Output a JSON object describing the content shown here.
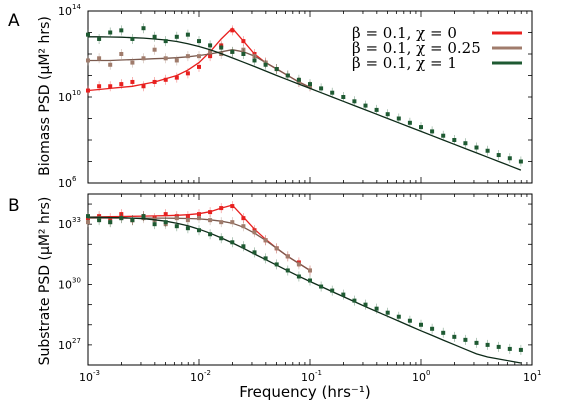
{
  "colors": {
    "chi0": "#e8201f",
    "chi025": "#a07c6c",
    "chi1": "#1e5a32",
    "fit_chi025": "#7a5a4e",
    "fit_chi1": "#0d2a18"
  },
  "figure": {
    "xlabel": "Frequency (hrs⁻¹)",
    "xlim": [
      0.001,
      10
    ],
    "x_ticks": [
      {
        "base": "10",
        "exp": "-3"
      },
      {
        "base": "10",
        "exp": "-2"
      },
      {
        "base": "10",
        "exp": "-1"
      },
      {
        "base": "10",
        "exp": "0"
      },
      {
        "base": "10",
        "exp": "1"
      }
    ],
    "legend": [
      {
        "text": "β = 0.1, χ = 0",
        "color": "#e8201f"
      },
      {
        "text": "β = 0.1, χ = 0.25",
        "color": "#a07c6c"
      },
      {
        "text": "β = 0.1, χ = 1",
        "color": "#1e5a32"
      }
    ]
  },
  "chart_data": [
    {
      "type": "scatter",
      "panel": "A",
      "ylabel": "Biomass PSD (μM² hrs)",
      "yscale": "log",
      "xscale": "log",
      "ylim_exp": [
        6,
        14
      ],
      "y_ticks": [
        {
          "base": "10",
          "exp": "6",
          "value_exp": 6
        },
        {
          "base": "10",
          "exp": "10",
          "value_exp": 10
        },
        {
          "base": "10",
          "exp": "14",
          "value_exp": 14
        }
      ],
      "series": [
        {
          "name": "β = 0.1, χ = 0",
          "x_log": [
            -3,
            -2.9,
            -2.8,
            -2.7,
            -2.6,
            -2.5,
            -2.4,
            -2.3,
            -2.2,
            -2.1,
            -2.0,
            -1.9,
            -1.8,
            -1.7,
            -1.6,
            -1.5,
            -1.4,
            -1.3,
            -1.2,
            -1.1,
            -1.0
          ],
          "y_log": [
            10.3,
            10.5,
            10.5,
            10.6,
            10.7,
            10.5,
            10.7,
            10.8,
            10.9,
            11.1,
            11.4,
            11.9,
            12.4,
            13.1,
            12.6,
            12.0,
            11.6,
            11.3,
            11.0,
            10.7,
            10.5
          ],
          "fit_log": [
            10.3,
            10.35,
            10.4,
            10.45,
            10.5,
            10.6,
            10.7,
            10.85,
            11.0,
            11.25,
            11.6,
            12.1,
            12.7,
            13.2,
            12.6,
            12.0,
            11.6,
            11.3,
            11.0,
            10.7,
            10.45
          ]
        },
        {
          "name": "β = 0.1, χ = 0.25",
          "x_log": [
            -3,
            -2.9,
            -2.8,
            -2.7,
            -2.6,
            -2.5,
            -2.4,
            -2.3,
            -2.2,
            -2.1,
            -2.0,
            -1.9,
            -1.8,
            -1.7,
            -1.6,
            -1.5,
            -1.4,
            -1.3,
            -1.2,
            -1.1,
            -1.0
          ],
          "y_log": [
            11.7,
            11.8,
            11.5,
            12.0,
            11.6,
            11.8,
            12.2,
            11.8,
            11.7,
            11.9,
            11.9,
            12.1,
            12.0,
            12.1,
            12.2,
            11.9,
            11.6,
            11.3,
            11.0,
            10.7,
            10.5
          ],
          "fit_log": [
            11.7,
            11.7,
            11.7,
            11.72,
            11.74,
            11.76,
            11.78,
            11.8,
            11.83,
            11.87,
            11.93,
            12.0,
            12.1,
            12.2,
            12.1,
            11.9,
            11.6,
            11.3,
            11.0,
            10.7,
            10.45
          ]
        },
        {
          "name": "β = 0.1, χ = 1",
          "x_log": [
            -3,
            -2.9,
            -2.8,
            -2.7,
            -2.6,
            -2.5,
            -2.4,
            -2.3,
            -2.2,
            -2.1,
            -2.0,
            -1.9,
            -1.8,
            -1.7,
            -1.6,
            -1.5,
            -1.4,
            -1.3,
            -1.2,
            -1.1,
            -1.0,
            -0.9,
            -0.8,
            -0.7,
            -0.6,
            -0.5,
            -0.4,
            -0.3,
            -0.2,
            -0.1,
            0.0,
            0.1,
            0.2,
            0.3,
            0.4,
            0.5,
            0.6,
            0.7,
            0.8,
            0.9
          ],
          "y_log": [
            12.9,
            12.7,
            13.0,
            13.1,
            12.7,
            13.2,
            12.8,
            12.6,
            12.8,
            12.9,
            12.6,
            12.4,
            12.3,
            12.1,
            12.0,
            11.7,
            11.5,
            11.3,
            11.0,
            10.8,
            10.6,
            10.4,
            10.2,
            10.0,
            9.8,
            9.6,
            9.4,
            9.2,
            9.0,
            8.8,
            8.6,
            8.4,
            8.2,
            8.0,
            7.85,
            7.65,
            7.5,
            7.3,
            7.15,
            7.0
          ],
          "fit_log": [
            12.8,
            12.8,
            12.79,
            12.78,
            12.76,
            12.74,
            12.7,
            12.65,
            12.58,
            12.48,
            12.35,
            12.2,
            12.02,
            11.82,
            11.62,
            11.42,
            11.21,
            11.0,
            10.8,
            10.6,
            10.4,
            10.2,
            10.0,
            9.8,
            9.6,
            9.4,
            9.2,
            9.0,
            8.8,
            8.6,
            8.4,
            8.2,
            8.0,
            7.8,
            7.6,
            7.4,
            7.2,
            7.0,
            6.8,
            6.6
          ]
        }
      ]
    },
    {
      "type": "scatter",
      "panel": "B",
      "ylabel": "Substrate PSD (μM² hrs)",
      "yscale": "log",
      "xscale": "log",
      "ylim_exp": [
        26,
        34.5
      ],
      "y_ticks": [
        {
          "base": "10",
          "exp": "27",
          "value_exp": 27
        },
        {
          "base": "10",
          "exp": "30",
          "value_exp": 30
        },
        {
          "base": "10",
          "exp": "33",
          "value_exp": 33
        }
      ],
      "series": [
        {
          "name": "β = 0.1, χ = 0",
          "x_log": [
            -3,
            -2.9,
            -2.8,
            -2.7,
            -2.6,
            -2.5,
            -2.4,
            -2.3,
            -2.2,
            -2.1,
            -2.0,
            -1.9,
            -1.8,
            -1.7,
            -1.6,
            -1.5,
            -1.4,
            -1.3,
            -1.2,
            -1.1,
            -1.0
          ],
          "y_log": [
            33.3,
            33.4,
            33.3,
            33.5,
            33.2,
            33.4,
            33.3,
            33.5,
            33.4,
            33.4,
            33.5,
            33.6,
            33.8,
            33.9,
            33.3,
            32.7,
            32.2,
            31.8,
            31.4,
            31.1,
            30.7
          ],
          "fit_log": [
            33.35,
            33.36,
            33.37,
            33.38,
            33.39,
            33.4,
            33.41,
            33.42,
            33.44,
            33.47,
            33.52,
            33.62,
            33.8,
            33.95,
            33.35,
            32.75,
            32.25,
            31.8,
            31.4,
            31.05,
            30.7
          ]
        },
        {
          "name": "β = 0.1, χ = 0.25",
          "x_log": [
            -3,
            -2.9,
            -2.8,
            -2.7,
            -2.6,
            -2.5,
            -2.4,
            -2.3,
            -2.2,
            -2.1,
            -2.0,
            -1.9,
            -1.8,
            -1.7,
            -1.6,
            -1.5,
            -1.4,
            -1.3,
            -1.2,
            -1.1,
            -1.0
          ],
          "y_log": [
            33.1,
            33.3,
            33.1,
            33.3,
            33.2,
            33.3,
            33.2,
            33.0,
            33.3,
            33.2,
            33.3,
            33.2,
            33.1,
            33.1,
            32.9,
            32.6,
            32.2,
            31.8,
            31.4,
            31.0,
            30.7
          ],
          "fit_log": [
            33.3,
            33.3,
            33.3,
            33.3,
            33.3,
            33.3,
            33.3,
            33.3,
            33.29,
            33.28,
            33.26,
            33.22,
            33.15,
            33.05,
            32.85,
            32.55,
            32.2,
            31.8,
            31.4,
            31.05,
            30.7
          ]
        },
        {
          "name": "β = 0.1, χ = 1",
          "x_log": [
            -3,
            -2.9,
            -2.8,
            -2.7,
            -2.6,
            -2.5,
            -2.4,
            -2.3,
            -2.2,
            -2.1,
            -2.0,
            -1.9,
            -1.8,
            -1.7,
            -1.6,
            -1.5,
            -1.4,
            -1.3,
            -1.2,
            -1.1,
            -1.0,
            -0.9,
            -0.8,
            -0.7,
            -0.6,
            -0.5,
            -0.4,
            -0.3,
            -0.2,
            -0.1,
            0.0,
            0.1,
            0.2,
            0.3,
            0.4,
            0.5,
            0.6,
            0.7,
            0.8,
            0.9
          ],
          "y_log": [
            33.4,
            33.2,
            33.1,
            33.3,
            33.2,
            33.4,
            33.0,
            33.1,
            32.9,
            32.8,
            32.7,
            32.5,
            32.3,
            32.1,
            31.9,
            31.6,
            31.3,
            31.0,
            30.7,
            30.4,
            30.2,
            29.9,
            29.7,
            29.5,
            29.2,
            29.0,
            28.8,
            28.6,
            28.4,
            28.2,
            28.0,
            27.8,
            27.6,
            27.4,
            27.25,
            27.1,
            27.0,
            26.9,
            26.8,
            26.75
          ],
          "fit_log": [
            33.35,
            33.34,
            33.33,
            33.32,
            33.3,
            33.27,
            33.22,
            33.15,
            33.05,
            32.92,
            32.75,
            32.55,
            32.32,
            32.07,
            31.8,
            31.52,
            31.24,
            30.96,
            30.68,
            30.41,
            30.15,
            29.9,
            29.65,
            29.4,
            29.15,
            28.9,
            28.66,
            28.42,
            28.18,
            27.94,
            27.7,
            27.47,
            27.24,
            27.01,
            26.78,
            26.55,
            26.4,
            26.3,
            26.2,
            26.1
          ]
        }
      ]
    }
  ]
}
